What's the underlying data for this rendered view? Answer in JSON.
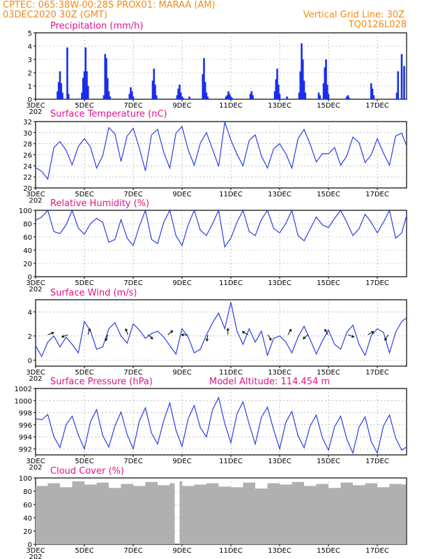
{
  "header": {
    "left_line1": "CPTEC:   065:38W-00:28S   PROX01: MARAA (AM)",
    "left_line2": "03DEC2020 30Z (GMT)",
    "right_line1": "Vertical Grid Line: 30Z",
    "right_line2": "TQ0126L028"
  },
  "x_axis": {
    "labels": [
      "3DEC",
      "5DEC",
      "7DEC",
      "9DEC",
      "11DEC",
      "13DEC",
      "15DEC",
      "17DEC"
    ],
    "label_days": [
      3,
      5,
      7,
      9,
      11,
      13,
      15,
      17
    ],
    "start_day": 3,
    "end_day": 18.2,
    "underlap_text": "202"
  },
  "panels": {
    "precip": {
      "title": "Precipitation (mm/h)",
      "ylim": [
        0,
        5
      ],
      "yticks": [
        0,
        1,
        2,
        3,
        4,
        5
      ]
    },
    "temp": {
      "title": "Surface Temperature (nC)",
      "ylim": [
        20,
        32
      ],
      "yticks": [
        20,
        22,
        24,
        26,
        28,
        30,
        32
      ]
    },
    "rh": {
      "title": "Relative Humidity (%)",
      "ylim": [
        0,
        100
      ],
      "yticks": [
        0,
        20,
        40,
        60,
        80,
        100
      ]
    },
    "wind": {
      "title": "Surface Wind (m/s)",
      "ylim": [
        -0.5,
        5
      ],
      "yticks": [
        0,
        2,
        4
      ]
    },
    "pressure": {
      "title": "Surface Pressure (hPa)",
      "extra": "Model Altitude: 114.454 m",
      "ylim": [
        991,
        1002
      ],
      "yticks": [
        992,
        994,
        996,
        998,
        1000,
        1002
      ]
    },
    "cloud": {
      "title": "Cloud Cover (%)",
      "ylim": [
        0,
        100
      ],
      "yticks": [
        0,
        20,
        40,
        60,
        80,
        100
      ]
    }
  },
  "colors": {
    "header": "#f08a14",
    "title": "#e0138c",
    "line": "#2a3fe0",
    "bar": "#1a2fe8",
    "cloud": "#b0b0b0",
    "grid": "#999999"
  },
  "chart_data": [
    {
      "type": "bar",
      "title": "Precipitation (mm/h)",
      "x_unit": "day of Dec 2020",
      "x": [
        3.9,
        3.95,
        4.0,
        4.05,
        4.1,
        4.3,
        4.35,
        4.9,
        4.95,
        5.0,
        5.05,
        5.1,
        5.15,
        5.8,
        5.85,
        5.9,
        5.95,
        6.0,
        6.05,
        6.85,
        6.9,
        6.95,
        7.0,
        7.8,
        7.85,
        7.9,
        7.95,
        8.8,
        8.85,
        8.9,
        8.95,
        9.0,
        9.05,
        9.3,
        9.85,
        9.9,
        9.95,
        10.0,
        10.05,
        10.8,
        10.85,
        10.9,
        10.95,
        11.0,
        11.05,
        11.8,
        11.85,
        11.9,
        12.8,
        12.85,
        12.9,
        12.95,
        13.0,
        13.3,
        13.8,
        13.85,
        13.9,
        13.95,
        14.0,
        14.05,
        14.6,
        14.65,
        14.8,
        14.85,
        14.9,
        14.95,
        15.0,
        15.75,
        15.8,
        15.85,
        16.75,
        16.8,
        16.85,
        17.8,
        17.85,
        18.0,
        18.1
      ],
      "values": [
        0.6,
        1.3,
        2.1,
        1.2,
        0.5,
        3.9,
        0.4,
        0.5,
        1.6,
        2.1,
        3.9,
        2.1,
        1.0,
        0.3,
        3.4,
        3.1,
        1.6,
        0.6,
        0.2,
        0.4,
        0.9,
        0.6,
        0.2,
        1.4,
        2.3,
        1.1,
        0.3,
        0.3,
        0.8,
        1.1,
        0.5,
        0.2,
        0.1,
        0.2,
        1.9,
        3.1,
        1.3,
        0.5,
        0.2,
        0.2,
        0.3,
        0.6,
        0.4,
        0.2,
        0.1,
        0.4,
        0.6,
        0.3,
        0.6,
        1.5,
        2.3,
        1.1,
        0.4,
        0.2,
        0.5,
        2.1,
        4.2,
        3.0,
        1.4,
        0.5,
        0.5,
        0.3,
        1.2,
        2.4,
        3.0,
        1.1,
        0.4,
        0.2,
        0.3,
        0.1,
        1.2,
        0.8,
        0.3,
        0.5,
        2.1,
        3.4,
        2.5
      ],
      "ylabel": "mm/h",
      "ylim": [
        0,
        5
      ]
    },
    {
      "type": "line",
      "title": "Surface Temperature (nC)",
      "x_unit": "day of Dec 2020",
      "x": [
        3.0,
        3.25,
        3.5,
        3.75,
        4.0,
        4.25,
        4.5,
        4.75,
        5.0,
        5.25,
        5.5,
        5.75,
        6.0,
        6.25,
        6.5,
        6.75,
        7.0,
        7.25,
        7.5,
        7.75,
        8.0,
        8.25,
        8.5,
        8.75,
        9.0,
        9.25,
        9.5,
        9.75,
        10.0,
        10.25,
        10.5,
        10.75,
        11.0,
        11.25,
        11.5,
        11.75,
        12.0,
        12.25,
        12.5,
        12.75,
        13.0,
        13.25,
        13.5,
        13.75,
        14.0,
        14.25,
        14.5,
        14.75,
        15.0,
        15.25,
        15.5,
        15.75,
        16.0,
        16.25,
        16.5,
        16.75,
        17.0,
        17.25,
        17.5,
        17.75,
        18.0,
        18.2
      ],
      "values": [
        23.7,
        23.0,
        21.6,
        27.3,
        28.4,
        26.8,
        24.2,
        27.5,
        28.9,
        27.4,
        23.6,
        25.8,
        30.9,
        29.8,
        24.8,
        29.4,
        30.8,
        27.2,
        23.1,
        29.6,
        30.6,
        26.4,
        23.6,
        29.9,
        31.1,
        26.9,
        24.1,
        28.1,
        30.0,
        27.0,
        23.9,
        31.9,
        28.7,
        26.1,
        24.0,
        28.6,
        29.6,
        25.8,
        23.6,
        27.1,
        28.0,
        26.2,
        23.6,
        28.9,
        30.6,
        27.9,
        24.7,
        26.2,
        26.2,
        27.3,
        24.1,
        25.8,
        29.2,
        28.2,
        24.6,
        26.0,
        28.9,
        26.3,
        24.1,
        29.4,
        29.9,
        27.6
      ],
      "ylabel": "nC",
      "ylim": [
        20,
        32
      ]
    },
    {
      "type": "line",
      "title": "Relative Humidity (%)",
      "x_unit": "day of Dec 2020",
      "x": [
        3.0,
        3.25,
        3.5,
        3.75,
        4.0,
        4.25,
        4.5,
        4.75,
        5.0,
        5.25,
        5.5,
        5.75,
        6.0,
        6.25,
        6.5,
        6.75,
        7.0,
        7.25,
        7.5,
        7.75,
        8.0,
        8.25,
        8.5,
        8.75,
        9.0,
        9.25,
        9.5,
        9.75,
        10.0,
        10.25,
        10.5,
        10.75,
        11.0,
        11.25,
        11.5,
        11.75,
        12.0,
        12.25,
        12.5,
        12.75,
        13.0,
        13.25,
        13.5,
        13.75,
        14.0,
        14.25,
        14.5,
        14.75,
        15.0,
        15.25,
        15.5,
        15.75,
        16.0,
        16.25,
        16.5,
        16.75,
        17.0,
        17.25,
        17.5,
        17.75,
        18.0,
        18.2
      ],
      "values": [
        85,
        90,
        100,
        68,
        65,
        78,
        100,
        73,
        64,
        80,
        88,
        82,
        52,
        56,
        86,
        58,
        47,
        76,
        100,
        56,
        50,
        82,
        100,
        62,
        47,
        78,
        100,
        70,
        62,
        80,
        100,
        45,
        58,
        82,
        100,
        68,
        62,
        86,
        100,
        73,
        66,
        80,
        100,
        62,
        54,
        72,
        90,
        78,
        74,
        88,
        100,
        82,
        62,
        72,
        94,
        82,
        66,
        82,
        100,
        58,
        66,
        92
      ],
      "ylabel": "%",
      "ylim": [
        0,
        100
      ]
    },
    {
      "type": "line",
      "title": "Surface Wind (m/s)",
      "x_unit": "day of Dec 2020",
      "x": [
        3.0,
        3.25,
        3.5,
        3.75,
        4.0,
        4.25,
        4.5,
        4.75,
        5.0,
        5.25,
        5.5,
        5.75,
        6.0,
        6.25,
        6.5,
        6.75,
        7.0,
        7.25,
        7.5,
        7.75,
        8.0,
        8.25,
        8.5,
        8.75,
        9.0,
        9.25,
        9.5,
        9.75,
        10.0,
        10.25,
        10.5,
        10.75,
        11.0,
        11.25,
        11.5,
        11.75,
        12.0,
        12.25,
        12.5,
        12.75,
        13.0,
        13.25,
        13.5,
        13.75,
        14.0,
        14.25,
        14.5,
        14.75,
        15.0,
        15.25,
        15.5,
        15.75,
        16.0,
        16.25,
        16.5,
        16.75,
        17.0,
        17.25,
        17.5,
        17.75,
        18.0,
        18.2
      ],
      "values": [
        1.2,
        0.3,
        1.5,
        2.0,
        1.1,
        1.9,
        1.3,
        0.6,
        3.2,
        2.4,
        0.9,
        1.1,
        2.6,
        3.1,
        2.0,
        1.4,
        3.0,
        2.5,
        1.8,
        2.2,
        2.4,
        1.9,
        1.2,
        0.5,
        2.6,
        1.9,
        0.6,
        0.9,
        2.1,
        3.1,
        3.9,
        2.6,
        4.8,
        2.4,
        1.3,
        2.6,
        1.5,
        2.4,
        0.4,
        1.8,
        2.0,
        1.5,
        0.6,
        1.9,
        2.8,
        1.7,
        0.5,
        1.6,
        2.5,
        1.3,
        0.9,
        2.3,
        2.9,
        1.3,
        0.4,
        2.0,
        2.6,
        2.3,
        0.6,
        2.3,
        3.2,
        3.5
      ],
      "ylabel": "m/s",
      "ylim": [
        -0.5,
        5
      ]
    },
    {
      "type": "line",
      "title": "Surface Pressure (hPa)",
      "x_unit": "day of Dec 2020",
      "x": [
        3.0,
        3.25,
        3.5,
        3.75,
        4.0,
        4.25,
        4.5,
        4.75,
        5.0,
        5.25,
        5.5,
        5.75,
        6.0,
        6.25,
        6.5,
        6.75,
        7.0,
        7.25,
        7.5,
        7.75,
        8.0,
        8.25,
        8.5,
        8.75,
        9.0,
        9.25,
        9.5,
        9.75,
        10.0,
        10.25,
        10.5,
        10.75,
        11.0,
        11.25,
        11.5,
        11.75,
        12.0,
        12.25,
        12.5,
        12.75,
        13.0,
        13.25,
        13.5,
        13.75,
        14.0,
        14.25,
        14.5,
        14.75,
        15.0,
        15.25,
        15.5,
        15.75,
        16.0,
        16.25,
        16.5,
        16.75,
        17.0,
        17.25,
        17.5,
        17.75,
        18.0,
        18.2
      ],
      "values": [
        997.0,
        996.8,
        997.7,
        994.0,
        992.2,
        996.0,
        997.4,
        994.3,
        992.0,
        996.5,
        998.5,
        994.2,
        992.3,
        995.8,
        998.1,
        994.4,
        992.0,
        996.6,
        998.8,
        994.6,
        992.8,
        996.7,
        999.6,
        995.1,
        992.4,
        997.0,
        999.2,
        995.5,
        994.0,
        998.5,
        1000.5,
        996.2,
        993.0,
        997.8,
        999.8,
        996.1,
        992.8,
        997.2,
        998.9,
        995.2,
        992.0,
        996.4,
        998.2,
        994.2,
        992.2,
        995.8,
        997.6,
        993.8,
        991.8,
        995.7,
        997.4,
        993.6,
        991.3,
        995.6,
        997.3,
        993.2,
        991.3,
        995.8,
        997.6,
        993.8,
        991.8,
        992.3
      ],
      "ylabel": "hPa",
      "ylim": [
        991,
        1002
      ]
    },
    {
      "type": "bar",
      "title": "Cloud Cover (%)",
      "x_unit": "day of Dec 2020",
      "x": [
        3.0,
        3.5,
        4.0,
        4.5,
        5.0,
        5.5,
        6.0,
        6.5,
        7.0,
        7.5,
        8.0,
        8.5,
        8.7,
        8.9,
        9.0,
        9.5,
        10.0,
        10.5,
        11.0,
        11.5,
        12.0,
        12.5,
        13.0,
        13.5,
        14.0,
        14.5,
        15.0,
        15.5,
        16.0,
        16.5,
        17.0,
        17.5,
        18.0
      ],
      "values": [
        88,
        92,
        86,
        95,
        90,
        93,
        85,
        91,
        88,
        94,
        89,
        92,
        0,
        95,
        88,
        90,
        92,
        87,
        86,
        93,
        84,
        92,
        90,
        94,
        88,
        91,
        85,
        93,
        89,
        92,
        86,
        91,
        90
      ],
      "ylabel": "%",
      "ylim": [
        0,
        100
      ]
    }
  ]
}
